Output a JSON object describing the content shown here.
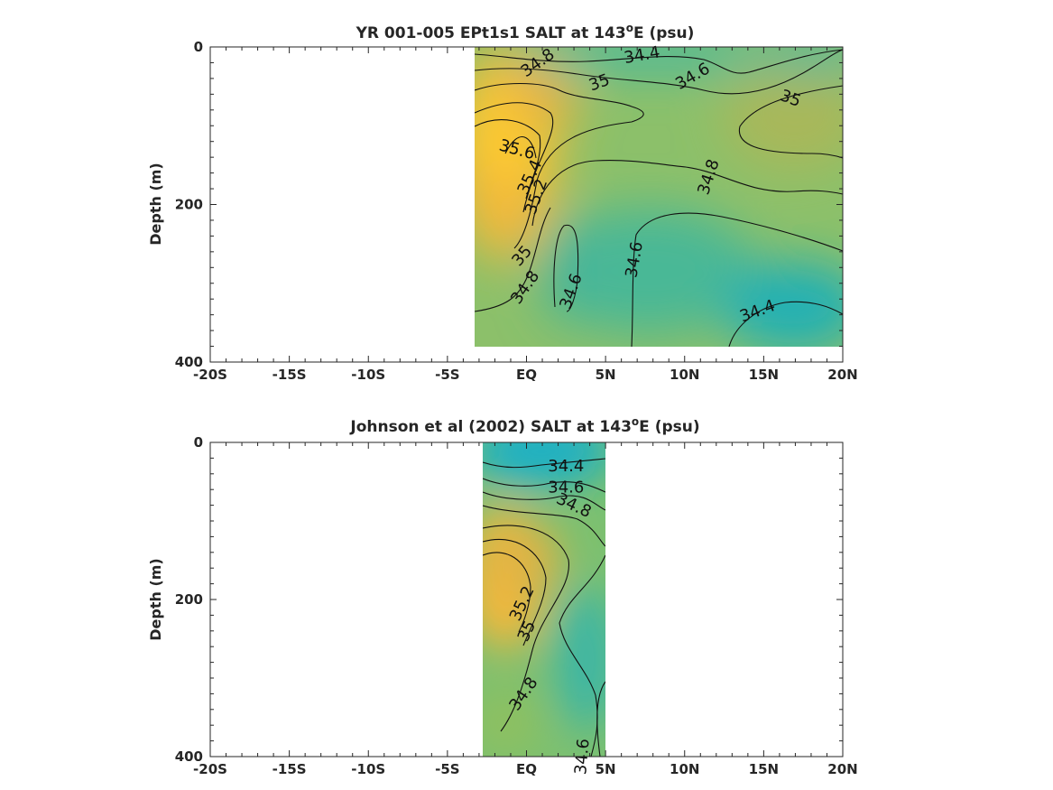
{
  "chart_data": [
    {
      "type": "heatmap",
      "title_main": "YR 001-005 EPt1s1 SALT at 143",
      "title_sup": "o",
      "title_end": "E (psu)",
      "xlabel": "",
      "ylabel": "Depth (m)",
      "xlim": [
        -20,
        20
      ],
      "ylim": [
        400,
        0
      ],
      "x_tick_values": [
        -20,
        -15,
        -10,
        -5,
        0,
        5,
        10,
        15,
        20
      ],
      "x_tick_labels": [
        "-20S",
        "-15S",
        "-10S",
        "-5S",
        "EQ",
        "5N",
        "10N",
        "15N",
        "20N"
      ],
      "y_tick_values": [
        0,
        200,
        400
      ],
      "y_tick_labels": [
        "0",
        "200",
        "400"
      ],
      "data_extent": {
        "lat": [
          -3.3,
          20
        ],
        "depth": [
          0,
          380
        ]
      },
      "contour_labels": [
        {
          "value": "34.8",
          "lat": 0.7,
          "depth": 20
        },
        {
          "value": "34.4",
          "lat": 7.3,
          "depth": 10
        },
        {
          "value": "34.6",
          "lat": 10.5,
          "depth": 37
        },
        {
          "value": "35",
          "lat": 4.6,
          "depth": 45
        },
        {
          "value": "35",
          "lat": 16.7,
          "depth": 65
        },
        {
          "value": "35.6",
          "lat": -0.6,
          "depth": 130
        },
        {
          "value": "35.4",
          "lat": 0.2,
          "depth": 165
        },
        {
          "value": "35.2",
          "lat": 0.6,
          "depth": 190
        },
        {
          "value": "34.8",
          "lat": 11.5,
          "depth": 165
        },
        {
          "value": "35",
          "lat": -0.3,
          "depth": 265
        },
        {
          "value": "34.8",
          "lat": -0.1,
          "depth": 305
        },
        {
          "value": "34.6",
          "lat": 2.8,
          "depth": 310
        },
        {
          "value": "34.6",
          "lat": 6.8,
          "depth": 270
        },
        {
          "value": "34.4",
          "lat": 14.6,
          "depth": 335
        }
      ]
    },
    {
      "type": "heatmap",
      "title_main": "Johnson et al (2002) SALT at 143",
      "title_sup": "o",
      "title_end": "E (psu)",
      "xlabel": "",
      "ylabel": "Depth (m)",
      "xlim": [
        -20,
        20
      ],
      "ylim": [
        400,
        0
      ],
      "x_tick_values": [
        -20,
        -15,
        -10,
        -5,
        0,
        5,
        10,
        15,
        20
      ],
      "x_tick_labels": [
        "-20S",
        "-15S",
        "-10S",
        "-5S",
        "EQ",
        "5N",
        "10N",
        "15N",
        "20N"
      ],
      "y_tick_values": [
        0,
        200,
        400
      ],
      "y_tick_labels": [
        "0",
        "200",
        "400"
      ],
      "data_extent": {
        "lat": [
          -2.8,
          5
        ],
        "depth": [
          0,
          400
        ]
      },
      "contour_labels": [
        {
          "value": "34.4",
          "lat": 2.5,
          "depth": 30
        },
        {
          "value": "34.6",
          "lat": 2.5,
          "depth": 57
        },
        {
          "value": "34.8",
          "lat": 3.0,
          "depth": 80
        },
        {
          "value": "35.2",
          "lat": -0.3,
          "depth": 205
        },
        {
          "value": "35",
          "lat": 0.0,
          "depth": 240
        },
        {
          "value": "34.8",
          "lat": -0.2,
          "depth": 320
        },
        {
          "value": "34.6",
          "lat": 3.5,
          "depth": 400
        }
      ]
    }
  ]
}
